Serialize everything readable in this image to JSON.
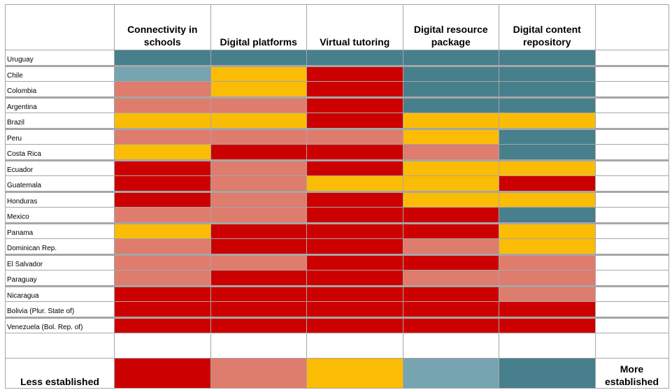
{
  "chart_data": {
    "type": "heatmap",
    "title": "",
    "columns": [
      "Connectivity in schools",
      "Digital platforms",
      "Virtual tutoring",
      "Digital resource package",
      "Digital content repository"
    ],
    "rows": [
      "Uruguay",
      "Chile",
      "Colombia",
      "Argentina",
      "Brazil",
      "Peru",
      "Costa Rica",
      "Ecuador",
      "Guatemala",
      "Honduras",
      "Mexico",
      "Panama",
      "Dominican Rep.",
      "El Salvador",
      "Paraguay",
      "Nicaragua",
      "Bolivia (Plur. State of)",
      "Venezuela (Bol. Rep. of)"
    ],
    "scale": {
      "levels": [
        1,
        2,
        3,
        4,
        5
      ],
      "colors": [
        "#CC0000",
        "#DE7C6D",
        "#FBBC05",
        "#76A4B0",
        "#477F8D"
      ],
      "low_label": "Less established",
      "high_label": "More established"
    },
    "values": [
      [
        5,
        5,
        5,
        5,
        5
      ],
      [
        4,
        3,
        1,
        5,
        5
      ],
      [
        2,
        3,
        1,
        5,
        5
      ],
      [
        2,
        2,
        1,
        5,
        5
      ],
      [
        3,
        3,
        1,
        3,
        3
      ],
      [
        2,
        2,
        2,
        3,
        5
      ],
      [
        3,
        1,
        1,
        2,
        5
      ],
      [
        1,
        2,
        1,
        3,
        3
      ],
      [
        1,
        2,
        3,
        3,
        1
      ],
      [
        1,
        2,
        1,
        3,
        3
      ],
      [
        2,
        2,
        1,
        1,
        5
      ],
      [
        3,
        1,
        1,
        1,
        3
      ],
      [
        2,
        1,
        1,
        2,
        3
      ],
      [
        2,
        2,
        1,
        1,
        2
      ],
      [
        2,
        1,
        1,
        2,
        2
      ],
      [
        1,
        1,
        1,
        1,
        2
      ],
      [
        1,
        1,
        1,
        1,
        1
      ],
      [
        1,
        1,
        1,
        1,
        1
      ]
    ]
  }
}
